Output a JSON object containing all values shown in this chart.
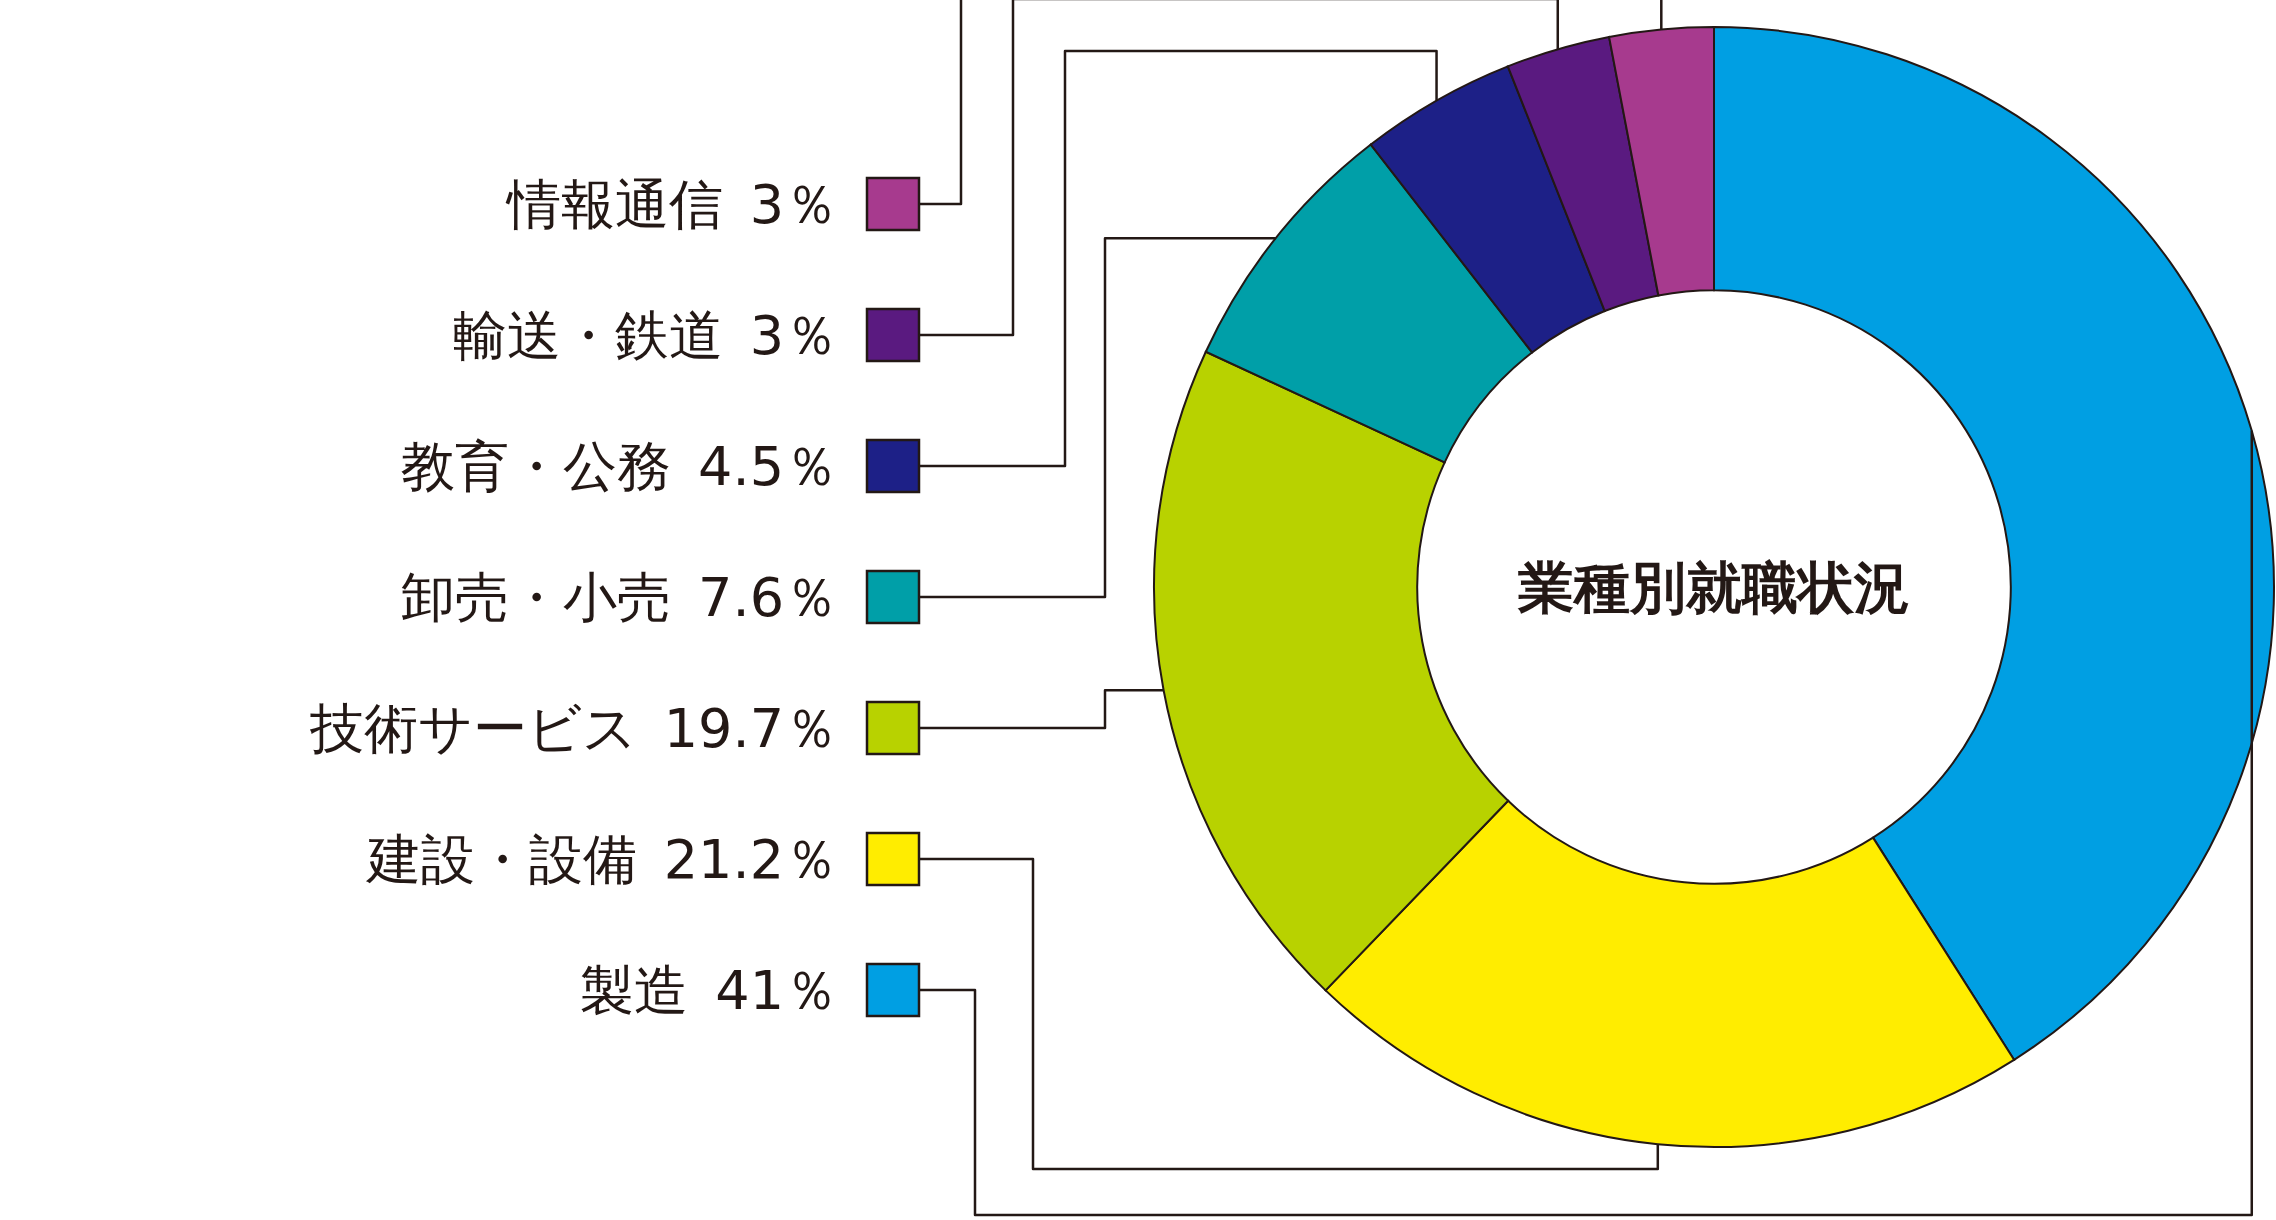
{
  "chart_data": {
    "type": "donut",
    "title": "業種別就職状況",
    "categories": [
      "製造",
      "建設・設備",
      "技術サービス",
      "卸売・小売",
      "教育・公務",
      "輸送・鉄道",
      "情報通信"
    ],
    "values": [
      41,
      21.2,
      19.7,
      7.6,
      4.5,
      3,
      3
    ],
    "value_labels": [
      "41％",
      "21.2％",
      "19.7％",
      "7.6％",
      "4.5％",
      "3％",
      "3％"
    ],
    "colors": [
      "#009fe3",
      "#ffed00",
      "#b8d200",
      "#009fa8",
      "#1d2087",
      "#5a1a80",
      "#a73a8e"
    ],
    "legend": "left"
  }
}
